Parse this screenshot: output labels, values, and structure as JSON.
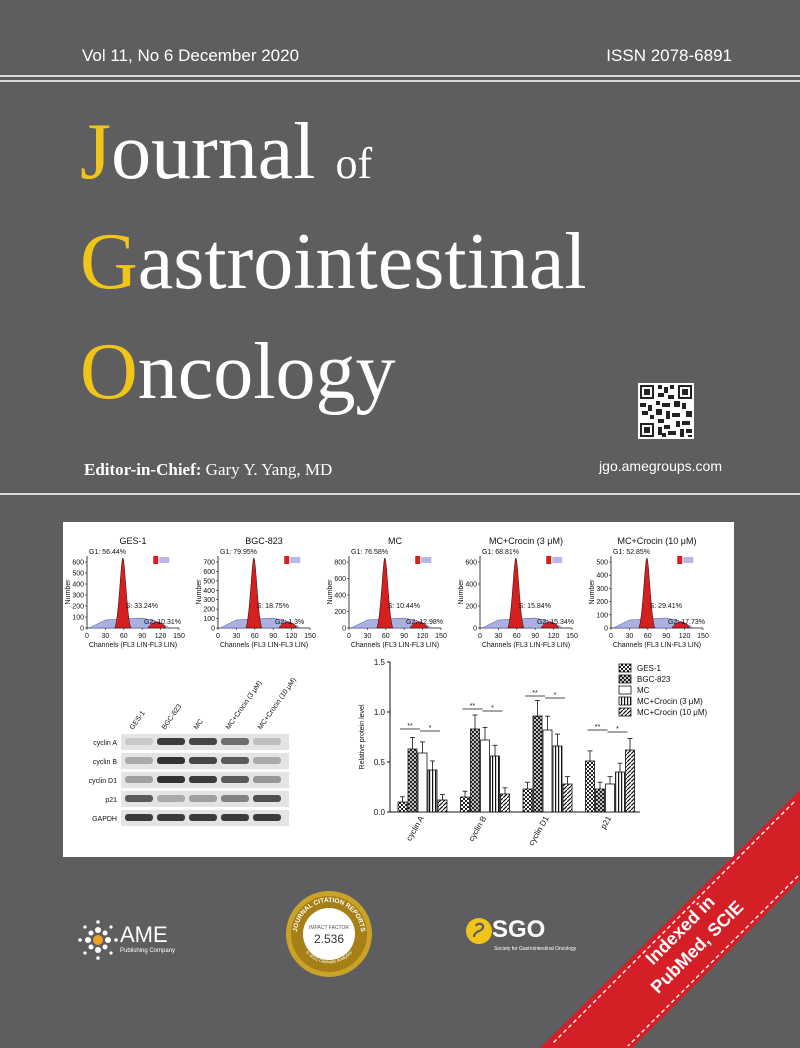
{
  "header": {
    "issue": "Vol 11, No 6 December 2020",
    "issn": "ISSN 2078-6891"
  },
  "title": {
    "line1": {
      "cap": "J",
      "rest": "ournal",
      "suffix": "of"
    },
    "line2": {
      "cap": "G",
      "rest": "astrointestinal"
    },
    "line3": {
      "cap": "O",
      "rest": "ncology"
    }
  },
  "editor": {
    "label": "Editor-in-Chief:",
    "name": "Gary Y. Yang, MD"
  },
  "website": "jgo.amegroups.com",
  "figure": {
    "flow": [
      {
        "title": "GES-1",
        "g1": "G1: 56.44%",
        "s": "S: 33.24%",
        "g2": "G2: 10.31%",
        "ticks": [
          "0",
          "100",
          "200",
          "300",
          "400",
          "500",
          "600"
        ]
      },
      {
        "title": "BGC-823",
        "g1": "G1: 79.95%",
        "s": "S: 18.75%",
        "g2": "G2: 1.3%",
        "ticks": [
          "0",
          "100",
          "200",
          "300",
          "400",
          "500",
          "600",
          "700"
        ]
      },
      {
        "title": "MC",
        "g1": "G1: 76.58%",
        "s": "S: 10.44%",
        "g2": "G2: 12.98%",
        "ticks": [
          "0",
          "200",
          "400",
          "600",
          "800"
        ]
      },
      {
        "title": "MC+Crocin (3 μM)",
        "g1": "G1: 68.81%",
        "s": "S: 15.84%",
        "g2": "G2: 15.34%",
        "ticks": [
          "0",
          "200",
          "400",
          "600"
        ]
      },
      {
        "title": "MC+Crocin (10 μM)",
        "g1": "G1: 52.85%",
        "s": "S: 29.41%",
        "g2": "G2: 17.73%",
        "ticks": [
          "0",
          "100",
          "200",
          "300",
          "400",
          "500"
        ]
      }
    ],
    "flow_ylabel": "Number",
    "flow_xlabel": "Channels (FL3 LIN-FL3 LIN)",
    "flow_xticks": [
      "0",
      "30",
      "60",
      "90",
      "120",
      "150"
    ],
    "blot_columns": [
      "GES-1",
      "BGC-823",
      "MC",
      "MC+Crocin (3 μM)",
      "MC+Crocin (10 μM)"
    ],
    "blot_rows": [
      "cyclin A",
      "cyclin B",
      "cyclin D1",
      "p21",
      "GAPDH"
    ],
    "bar_sig": "*",
    "bar_sig2": "**"
  },
  "chart_data": {
    "type": "bar",
    "categories": [
      "cyclin A",
      "cyclin B",
      "cyclin D1",
      "p21"
    ],
    "ylabel": "Relative protein level",
    "ylim": [
      0,
      1.5
    ],
    "yticks": [
      "0.0",
      "0.5",
      "1.0",
      "1.5"
    ],
    "legend_position": "top-right",
    "series": [
      {
        "name": "GES-1",
        "values": [
          0.1,
          0.15,
          0.23,
          0.51
        ]
      },
      {
        "name": "BGC-823",
        "values": [
          0.63,
          0.83,
          0.96,
          0.23
        ]
      },
      {
        "name": "MC",
        "values": [
          0.59,
          0.72,
          0.82,
          0.28
        ]
      },
      {
        "name": "MC+Crocin (3 μM)",
        "values": [
          0.42,
          0.56,
          0.66,
          0.4
        ]
      },
      {
        "name": "MC+Crocin (10 μM)",
        "values": [
          0.12,
          0.18,
          0.28,
          0.62
        ]
      }
    ]
  },
  "logos": {
    "ame": {
      "name": "AME",
      "sub": "Publishing Company"
    },
    "seal": {
      "top": "JOURNAL CITATION REPORTS",
      "label": "IMPACT FACTOR",
      "value": "2.536",
      "bottom": "© 2021 Clarivate Analytics"
    },
    "sgo": {
      "name": "SGO",
      "sub": "Society for Gastrointestinal Oncology"
    }
  },
  "ribbon": {
    "line1": "Indexed in",
    "line2": "PubMed, SCIE"
  },
  "colors": {
    "accent": "#f0c419",
    "background": "#5e5e60",
    "ribbon": "#d41f26",
    "peak": "#d61f1f",
    "shade": "#aab0e0"
  }
}
